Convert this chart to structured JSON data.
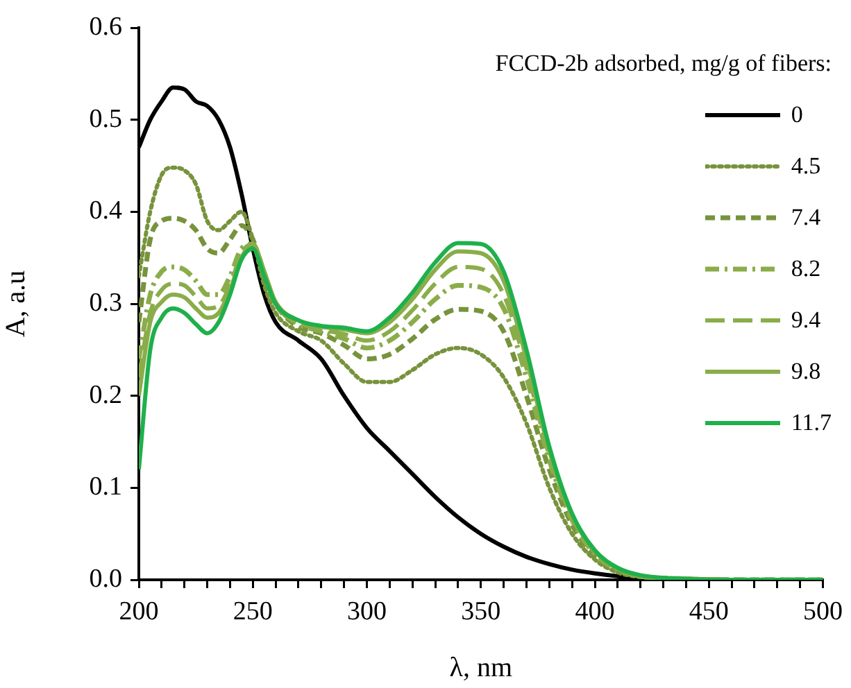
{
  "chart_data": {
    "type": "line",
    "xlabel": "λ, nm",
    "ylabel": "A, a.u",
    "legend_title": "FCCD-2b adsorbed, mg/g of fibers:",
    "legend": "top right",
    "grid": false,
    "marker": "none",
    "xlim": [
      200,
      500
    ],
    "ylim": [
      0,
      0.6
    ],
    "xticks": [
      200,
      {
        "value": 210,
        "label": null
      },
      {
        "value": 220,
        "label": null
      },
      {
        "value": 230,
        "label": null
      },
      {
        "value": 240,
        "label": null
      },
      250,
      {
        "value": 260,
        "label": null
      },
      {
        "value": 270,
        "label": null
      },
      {
        "value": 280,
        "label": null
      },
      {
        "value": 290,
        "label": null
      },
      300,
      {
        "value": 310,
        "label": null
      },
      {
        "value": 320,
        "label": null
      },
      {
        "value": 330,
        "label": null
      },
      {
        "value": 340,
        "label": null
      },
      350,
      {
        "value": 360,
        "label": null
      },
      {
        "value": 370,
        "label": null
      },
      {
        "value": 380,
        "label": null
      },
      {
        "value": 390,
        "label": null
      },
      400,
      {
        "value": 410,
        "label": null
      },
      {
        "value": 420,
        "label": null
      },
      {
        "value": 430,
        "label": null
      },
      {
        "value": 440,
        "label": null
      },
      450,
      {
        "value": 460,
        "label": null
      },
      {
        "value": 470,
        "label": null
      },
      {
        "value": 480,
        "label": null
      },
      {
        "value": 490,
        "label": null
      },
      500
    ],
    "yticks": [
      {
        "value": 0,
        "label": "0.0"
      },
      0.1,
      0.2,
      0.3,
      0.4,
      0.5,
      0.6
    ],
    "x": [
      200,
      205,
      210,
      215,
      220,
      225,
      230,
      235,
      240,
      245,
      250,
      255,
      260,
      270,
      280,
      290,
      300,
      310,
      320,
      330,
      340,
      350,
      360,
      370,
      380,
      390,
      400,
      410,
      420,
      440,
      460,
      480,
      500
    ],
    "series": [
      {
        "name": "0",
        "color": "#000000",
        "line_style": "solid",
        "values": [
          0.47,
          0.5,
          0.52,
          0.535,
          0.533,
          0.52,
          0.515,
          0.5,
          0.47,
          0.42,
          0.36,
          0.31,
          0.28,
          0.26,
          0.24,
          0.2,
          0.165,
          0.14,
          0.115,
          0.09,
          0.068,
          0.05,
          0.036,
          0.025,
          0.017,
          0.011,
          0.007,
          0.004,
          0.002,
          0.001,
          0,
          0,
          0
        ]
      },
      {
        "name": "4.5",
        "color": "#77933c",
        "line_style": "dotted",
        "values": [
          0.33,
          0.4,
          0.44,
          0.448,
          0.445,
          0.43,
          0.39,
          0.38,
          0.39,
          0.4,
          0.37,
          0.32,
          0.29,
          0.27,
          0.26,
          0.235,
          0.215,
          0.215,
          0.228,
          0.245,
          0.252,
          0.245,
          0.22,
          0.17,
          0.1,
          0.05,
          0.022,
          0.008,
          0.003,
          0.001,
          0,
          0,
          0
        ]
      },
      {
        "name": "7.4",
        "color": "#77933c",
        "line_style": "dashed",
        "values": [
          0.28,
          0.37,
          0.39,
          0.393,
          0.39,
          0.38,
          0.36,
          0.355,
          0.37,
          0.385,
          0.37,
          0.33,
          0.3,
          0.275,
          0.268,
          0.255,
          0.24,
          0.245,
          0.262,
          0.283,
          0.294,
          0.292,
          0.27,
          0.2,
          0.12,
          0.06,
          0.026,
          0.01,
          0.004,
          0.001,
          0,
          0,
          0
        ]
      },
      {
        "name": "8.2",
        "color": "#8aad4a",
        "line_style": "dashdot",
        "values": [
          0.24,
          0.31,
          0.335,
          0.34,
          0.337,
          0.325,
          0.31,
          0.31,
          0.33,
          0.36,
          0.365,
          0.33,
          0.3,
          0.278,
          0.27,
          0.262,
          0.252,
          0.26,
          0.28,
          0.305,
          0.32,
          0.318,
          0.295,
          0.22,
          0.13,
          0.065,
          0.028,
          0.011,
          0.004,
          0.001,
          0,
          0,
          0
        ]
      },
      {
        "name": "9.4",
        "color": "#8aad4a",
        "line_style": "longdash",
        "values": [
          0.22,
          0.29,
          0.315,
          0.322,
          0.32,
          0.308,
          0.295,
          0.298,
          0.32,
          0.355,
          0.365,
          0.335,
          0.3,
          0.28,
          0.272,
          0.267,
          0.26,
          0.27,
          0.293,
          0.322,
          0.34,
          0.338,
          0.31,
          0.23,
          0.135,
          0.068,
          0.03,
          0.012,
          0.004,
          0.001,
          0,
          0,
          0
        ]
      },
      {
        "name": "9.8",
        "color": "#8aad4a",
        "line_style": "solid",
        "values": [
          0.2,
          0.28,
          0.302,
          0.31,
          0.307,
          0.295,
          0.285,
          0.29,
          0.315,
          0.35,
          0.365,
          0.335,
          0.302,
          0.282,
          0.275,
          0.272,
          0.268,
          0.28,
          0.305,
          0.337,
          0.357,
          0.355,
          0.325,
          0.24,
          0.14,
          0.07,
          0.031,
          0.012,
          0.004,
          0.001,
          0,
          0,
          0
        ]
      },
      {
        "name": "11.7",
        "color": "#1fb04b",
        "line_style": "solid",
        "values": [
          0.12,
          0.25,
          0.285,
          0.295,
          0.29,
          0.278,
          0.268,
          0.28,
          0.31,
          0.348,
          0.36,
          0.33,
          0.3,
          0.282,
          0.276,
          0.274,
          0.27,
          0.285,
          0.312,
          0.345,
          0.366,
          0.365,
          0.335,
          0.25,
          0.145,
          0.072,
          0.032,
          0.013,
          0.005,
          0.001,
          0,
          0,
          0
        ]
      }
    ]
  }
}
